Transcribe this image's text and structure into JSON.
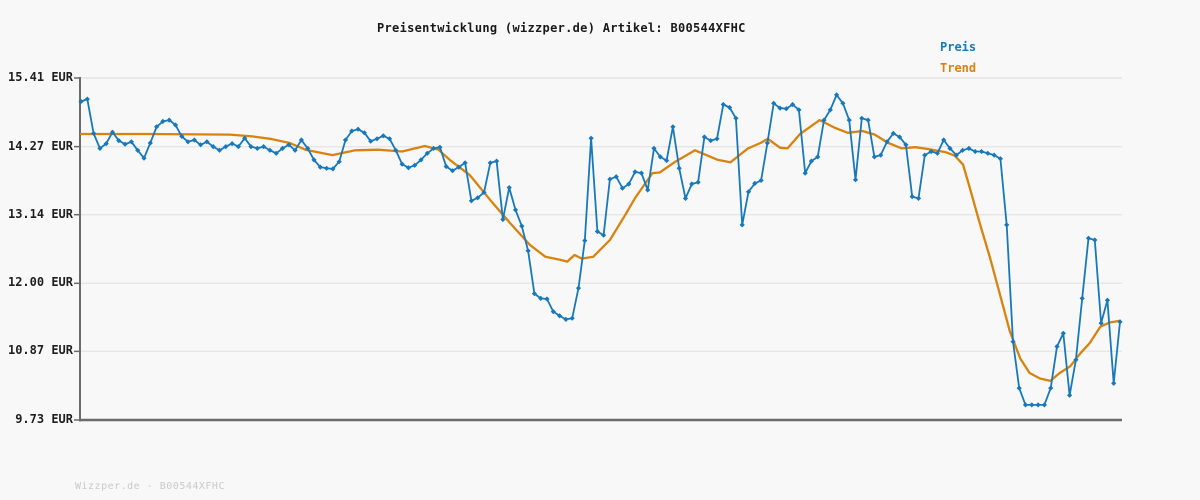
{
  "header": {
    "title": "Preisentwicklung (wizzper.de) Artikel: B00544XFHC"
  },
  "footer": {
    "watermark": "Wizzper.de - B00544XFHC"
  },
  "colors": {
    "background": "#f8f8f8",
    "gridline": "#e6e6e6",
    "axis": "#6b6b6b",
    "tick_label": "#1f1f1f",
    "title": "#1a1a1a",
    "watermark": "#c9c9c9",
    "preis": "#1878bc",
    "trend": "#d9830f"
  },
  "chart_data": {
    "type": "line",
    "title": "Preisentwicklung (wizzper.de) Artikel: B00544XFHC",
    "xlabel": "",
    "ylabel": "EUR",
    "ylim": [
      9.73,
      15.41
    ],
    "y_ticks": [
      "15.41 EUR",
      "14.27 EUR",
      "13.14 EUR",
      "12.00 EUR",
      "10.87 EUR",
      "9.73 EUR"
    ],
    "y_tick_values": [
      15.41,
      14.27,
      13.14,
      12.0,
      10.87,
      9.73
    ],
    "grid": "horizontal",
    "legend_position": "top-right",
    "x_axis_labels_visible": false,
    "series": [
      {
        "name": "Preis",
        "color": "#1878bc",
        "marker": "diamond",
        "values": [
          15.02,
          15.06,
          14.49,
          14.24,
          14.32,
          14.51,
          14.37,
          14.31,
          14.35,
          14.21,
          14.08,
          14.33,
          14.6,
          14.69,
          14.71,
          14.63,
          14.44,
          14.35,
          14.38,
          14.3,
          14.35,
          14.27,
          14.21,
          14.27,
          14.32,
          14.27,
          14.41,
          14.27,
          14.24,
          14.27,
          14.21,
          14.16,
          14.24,
          14.3,
          14.21,
          14.38,
          14.24,
          14.05,
          13.93,
          13.91,
          13.9,
          14.02,
          14.38,
          14.53,
          14.56,
          14.5,
          14.36,
          14.4,
          14.45,
          14.4,
          14.21,
          13.98,
          13.92,
          13.96,
          14.05,
          14.16,
          14.24,
          14.26,
          13.94,
          13.87,
          13.93,
          14.0,
          13.37,
          13.42,
          13.51,
          14.0,
          14.03,
          13.06,
          13.59,
          13.22,
          12.95,
          12.54,
          11.83,
          11.75,
          11.74,
          11.53,
          11.46,
          11.4,
          11.42,
          11.92,
          12.71,
          14.41,
          12.86,
          12.8,
          13.73,
          13.77,
          13.58,
          13.65,
          13.85,
          13.83,
          13.55,
          14.24,
          14.1,
          14.04,
          14.6,
          13.91,
          13.41,
          13.65,
          13.68,
          14.43,
          14.37,
          14.4,
          14.97,
          14.92,
          14.74,
          12.97,
          13.52,
          13.66,
          13.71,
          14.33,
          14.99,
          14.91,
          14.9,
          14.97,
          14.88,
          13.83,
          14.03,
          14.1,
          14.71,
          14.88,
          15.13,
          14.99,
          14.71,
          13.72,
          14.74,
          14.71,
          14.1,
          14.13,
          14.35,
          14.49,
          14.43,
          14.3,
          13.44,
          13.41,
          14.13,
          14.19,
          14.16,
          14.38,
          14.24,
          14.13,
          14.21,
          14.24,
          14.19,
          14.19,
          14.16,
          14.13,
          14.07,
          12.97,
          11.03,
          10.26,
          9.98,
          9.98,
          9.98,
          9.98,
          10.26,
          10.95,
          11.17,
          10.14,
          10.73,
          11.75,
          12.75,
          12.72,
          11.34,
          11.72,
          10.34,
          11.36
        ]
      },
      {
        "name": "Trend",
        "color": "#d9830f",
        "marker": "none",
        "x_frac": [
          0.0,
          0.066,
          0.143,
          0.165,
          0.182,
          0.201,
          0.216,
          0.242,
          0.264,
          0.286,
          0.309,
          0.331,
          0.344,
          0.355,
          0.374,
          0.394,
          0.413,
          0.432,
          0.447,
          0.461,
          0.468,
          0.475,
          0.482,
          0.493,
          0.509,
          0.524,
          0.533,
          0.55,
          0.557,
          0.572,
          0.591,
          0.613,
          0.625,
          0.642,
          0.654,
          0.661,
          0.673,
          0.68,
          0.692,
          0.711,
          0.726,
          0.738,
          0.752,
          0.764,
          0.777,
          0.79,
          0.803,
          0.815,
          0.832,
          0.841,
          0.849,
          0.856,
          0.865,
          0.875,
          0.885,
          0.894,
          0.904,
          0.913,
          0.923,
          0.933,
          0.942,
          0.952,
          0.962,
          0.971,
          0.981,
          0.99,
          1.0
        ],
        "values": [
          14.48,
          14.48,
          14.47,
          14.44,
          14.4,
          14.33,
          14.22,
          14.13,
          14.21,
          14.22,
          14.19,
          14.28,
          14.22,
          14.05,
          13.8,
          13.38,
          13.0,
          12.64,
          12.44,
          12.39,
          12.36,
          12.47,
          12.41,
          12.44,
          12.72,
          13.14,
          13.41,
          13.83,
          13.84,
          14.02,
          14.21,
          14.05,
          14.01,
          14.24,
          14.33,
          14.4,
          14.25,
          14.24,
          14.48,
          14.71,
          14.58,
          14.5,
          14.53,
          14.47,
          14.33,
          14.24,
          14.26,
          14.23,
          14.18,
          14.12,
          13.97,
          13.55,
          13.0,
          12.42,
          11.78,
          11.2,
          10.75,
          10.51,
          10.42,
          10.38,
          10.51,
          10.62,
          10.84,
          11.01,
          11.28,
          11.35,
          11.38
        ]
      }
    ]
  }
}
